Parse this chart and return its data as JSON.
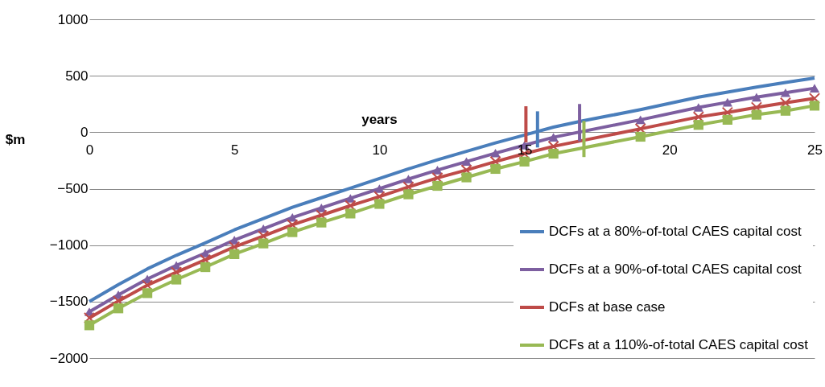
{
  "chart_data": {
    "type": "line",
    "xlabel": "years",
    "ylabel": "$m",
    "xlim": [
      0,
      25
    ],
    "ylim": [
      -2000,
      1000
    ],
    "xticks": [
      0,
      5,
      10,
      15,
      20,
      25
    ],
    "yticks": [
      -2000,
      -1500,
      -1000,
      -500,
      0,
      500,
      1000
    ],
    "grid": "y",
    "legend": "bottom right",
    "series": [
      {
        "name": "DCFs at a 80%-of-total CAES capital cost",
        "color": "#4a7ebb",
        "marker": "none",
        "x": [
          0,
          1,
          2,
          3,
          4,
          5,
          6,
          7,
          8,
          9,
          10,
          11,
          12,
          13,
          14,
          15,
          16,
          17,
          18,
          19,
          20,
          21,
          22,
          23,
          24,
          25
        ],
        "values": [
          -1500,
          -1350,
          -1210,
          -1090,
          -980,
          -865,
          -765,
          -665,
          -580,
          -495,
          -410,
          -325,
          -245,
          -170,
          -95,
          -25,
          45,
          100,
          150,
          200,
          255,
          310,
          355,
          400,
          440,
          480
        ]
      },
      {
        "name": "DCFs at a 90%-of-total CAES capital cost",
        "color": "#7d5fa0",
        "marker": "triangle",
        "x": [
          0,
          1,
          2,
          3,
          4,
          5,
          6,
          7,
          8,
          9,
          10,
          11,
          12,
          13,
          14,
          15,
          16,
          19,
          21,
          22,
          23,
          24,
          25
        ],
        "values": [
          -1590,
          -1440,
          -1300,
          -1180,
          -1070,
          -955,
          -855,
          -755,
          -670,
          -585,
          -500,
          -415,
          -335,
          -260,
          -185,
          -115,
          -45,
          110,
          220,
          265,
          310,
          350,
          390
        ]
      },
      {
        "name": "DCFs at base case",
        "color": "#be4b48",
        "marker": "cross",
        "x": [
          0,
          1,
          2,
          3,
          4,
          5,
          6,
          7,
          8,
          9,
          10,
          11,
          12,
          13,
          14,
          15,
          16,
          19,
          21,
          22,
          23,
          24,
          25
        ],
        "values": [
          -1645,
          -1495,
          -1355,
          -1240,
          -1130,
          -1015,
          -920,
          -820,
          -735,
          -650,
          -570,
          -485,
          -405,
          -335,
          -260,
          -190,
          -125,
          30,
          135,
          175,
          220,
          260,
          300
        ]
      },
      {
        "name": "DCFs at a 110%-of-total CAES capital cost",
        "color": "#98b954",
        "marker": "square",
        "x": [
          0,
          1,
          2,
          3,
          4,
          5,
          6,
          7,
          8,
          9,
          10,
          11,
          12,
          13,
          14,
          15,
          16,
          19,
          21,
          22,
          23,
          24,
          25
        ],
        "values": [
          -1710,
          -1560,
          -1425,
          -1305,
          -1195,
          -1080,
          -985,
          -885,
          -800,
          -720,
          -635,
          -550,
          -475,
          -400,
          -325,
          -260,
          -190,
          -40,
          65,
          110,
          155,
          190,
          235
        ]
      },
      {
        "color": "#be4b48",
        "marker": "none",
        "x": [
          15.05,
          15.05
        ],
        "values": [
          230,
          -90
        ]
      },
      {
        "color": "#4a7ebb",
        "marker": "none",
        "x": [
          15.45,
          15.45
        ],
        "values": [
          185,
          -135
        ]
      },
      {
        "color": "#7d5fa0",
        "marker": "none",
        "x": [
          16.9,
          16.9
        ],
        "values": [
          250,
          -80
        ]
      },
      {
        "color": "#98b954",
        "marker": "none",
        "x": [
          17.05,
          17.05
        ],
        "values": [
          100,
          -220
        ]
      }
    ]
  }
}
